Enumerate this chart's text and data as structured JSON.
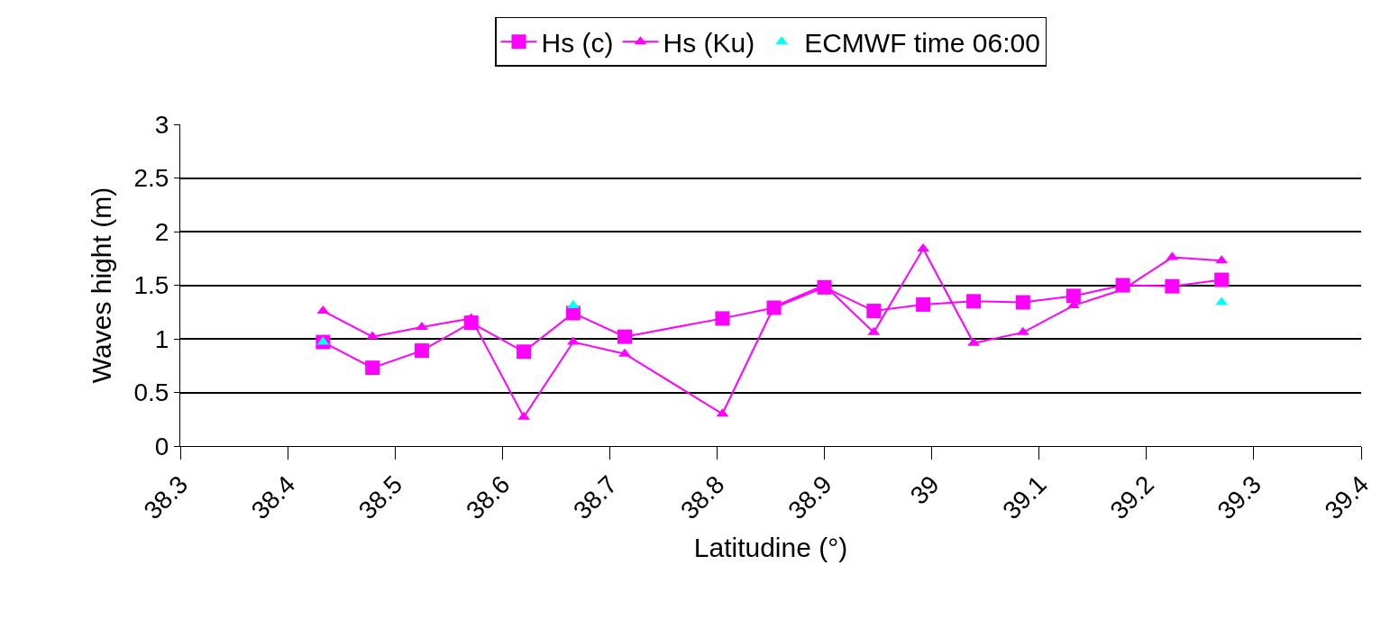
{
  "chart_data": {
    "type": "line",
    "xlabel": "Latitudine (°)",
    "ylabel": "Waves hight (m)",
    "x": [
      38.433,
      38.479,
      38.525,
      38.571,
      38.62,
      38.666,
      38.714,
      38.805,
      38.853,
      38.9,
      38.946,
      38.992,
      39.039,
      39.085,
      39.132,
      39.178,
      39.224,
      39.27
    ],
    "series": [
      {
        "name": "Hs (c)",
        "color": "#ff00ff",
        "marker": "square",
        "values": [
          0.97,
          0.73,
          0.89,
          1.15,
          0.88,
          1.24,
          1.02,
          1.19,
          1.29,
          1.48,
          1.26,
          1.32,
          1.35,
          1.34,
          1.4,
          1.5,
          1.49,
          1.55
        ]
      },
      {
        "name": "Hs (Ku)",
        "color": "#ff00ff",
        "marker": "triangle",
        "values": [
          1.26,
          1.02,
          1.11,
          1.19,
          0.27,
          0.97,
          0.86,
          0.3,
          1.3,
          1.5,
          1.06,
          1.84,
          0.96,
          1.06,
          1.31,
          1.46,
          1.76,
          1.73
        ]
      },
      {
        "name": "ECMWF time 06:00",
        "color": "#00ffff",
        "marker": "triangle",
        "type": "scatter",
        "values": [
          0.97,
          null,
          null,
          null,
          null,
          1.31,
          null,
          null,
          null,
          null,
          null,
          null,
          null,
          null,
          null,
          null,
          null,
          1.34
        ]
      }
    ],
    "xlim": [
      38.3,
      39.4
    ],
    "xticks": [
      38.3,
      38.4,
      38.5,
      38.6,
      38.7,
      38.8,
      38.9,
      39,
      39.1,
      39.2,
      39.3,
      39.4
    ],
    "ylim": [
      0,
      3
    ],
    "yticks": [
      0,
      0.5,
      1,
      1.5,
      2,
      2.5,
      3
    ],
    "grid": "y",
    "legend": "top"
  }
}
